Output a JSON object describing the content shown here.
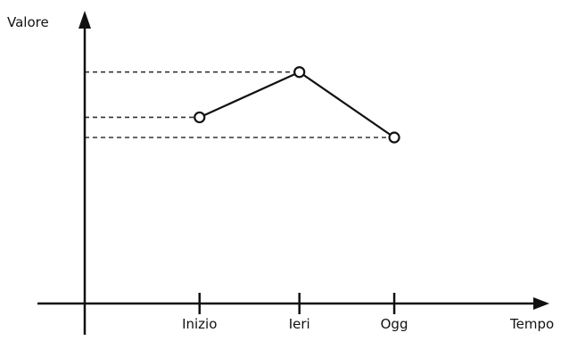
{
  "chart_data": {
    "type": "line",
    "ylabel": "Valore",
    "xlabel": "Tempo",
    "categories": [
      "Inizio",
      "Ieri",
      "Ogg"
    ],
    "x_positions": [
      1.15,
      2.15,
      3.1
    ],
    "xlim": [
      0,
      4.6
    ],
    "series": [
      {
        "values": [
          3.5,
          4.4,
          3.1
        ]
      }
    ],
    "ylim": [
      -0.2,
      5.3
    ],
    "marker": "hollow-circle",
    "reference_lines": "dashed horizontal line from each point to the y-axis",
    "grid": false,
    "legend": "none",
    "colors": {
      "line": "#111111",
      "dashes": "#333333",
      "axes": "#111111",
      "background": "#ffffff"
    }
  }
}
